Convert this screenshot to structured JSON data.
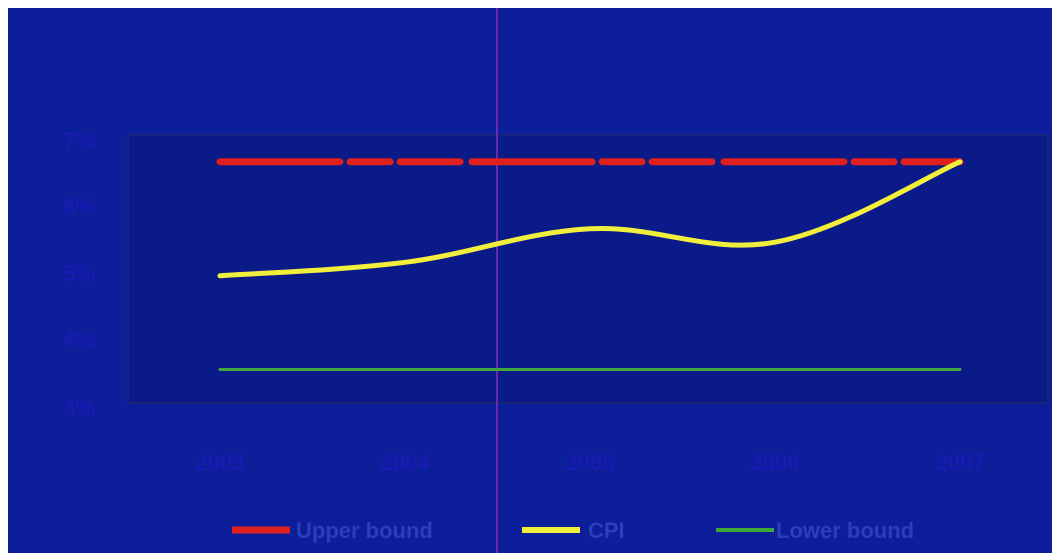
{
  "chart_data": {
    "type": "line",
    "title": "",
    "xlabel": "",
    "ylabel": "",
    "x": [
      2003,
      2004,
      2005,
      2006,
      2007
    ],
    "categories": [
      "2003",
      "2004",
      "2005",
      "2006",
      "2007"
    ],
    "y_ticks": [
      "3%",
      "4%",
      "5%",
      "6%",
      "7%"
    ],
    "ylim": [
      3,
      7
    ],
    "grid": false,
    "legend_position": "bottom",
    "series": [
      {
        "name": "Upper bound",
        "values": [
          6.6,
          6.6,
          6.6,
          6.6,
          6.6
        ],
        "color": "#e0201c",
        "style": "dashed"
      },
      {
        "name": "CPI",
        "values": [
          4.9,
          5.1,
          5.6,
          5.4,
          6.6
        ],
        "color": "#f2ee3c",
        "style": "solid"
      },
      {
        "name": "Lower bound",
        "values": [
          3.5,
          3.5,
          3.5,
          3.5,
          3.5
        ],
        "color": "#3fa83a",
        "style": "solid"
      }
    ]
  },
  "colors": {
    "background": "#0c1e9a",
    "plot_area": "#0a1a88",
    "plot_border": "#1a237a",
    "divider": "#6a2ab0"
  }
}
